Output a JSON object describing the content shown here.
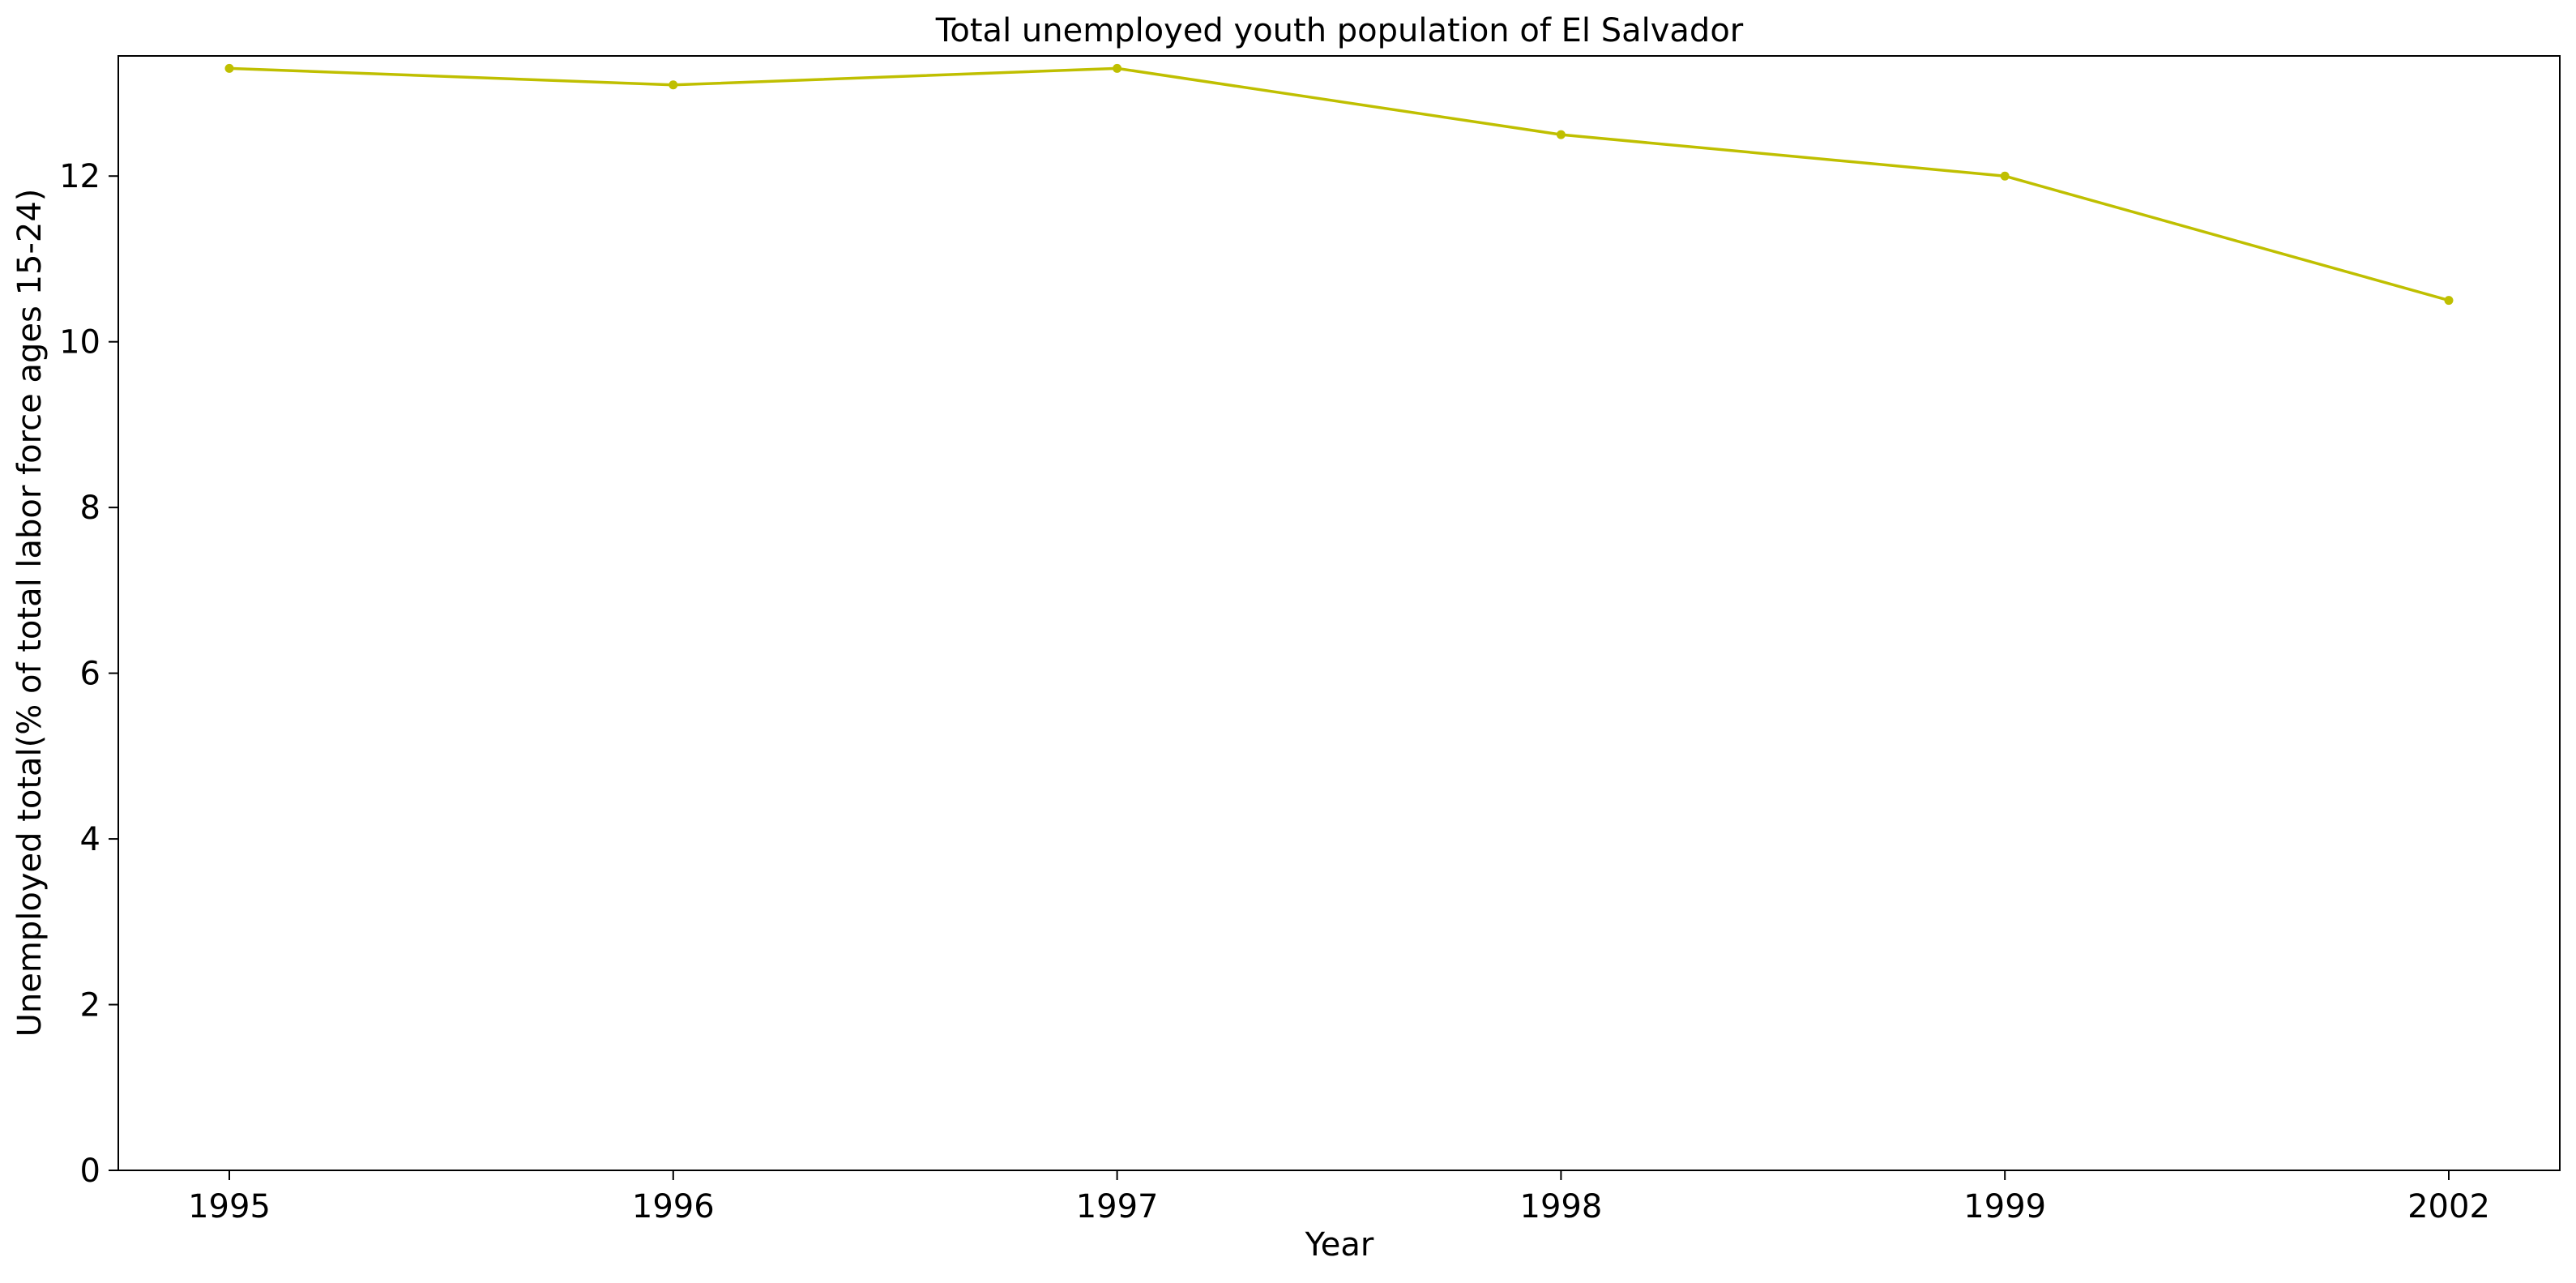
{
  "chart_data": {
    "type": "line",
    "title": "Total unemployed youth population of El Salvador",
    "xlabel": "Year",
    "ylabel": "Unemployed total(% of total labor force ages 15-24)",
    "categories": [
      "1995",
      "1996",
      "1997",
      "1998",
      "1999",
      "2002"
    ],
    "series": [
      {
        "values": [
          13.3,
          13.1,
          13.3,
          12.5,
          12.0,
          10.5
        ],
        "color": "#bfbf00",
        "marker": "circle"
      }
    ],
    "ylim": [
      0,
      13.45
    ],
    "yticks": [
      0,
      2,
      4,
      6,
      8,
      10,
      12
    ],
    "grid": false,
    "legend": "none"
  }
}
